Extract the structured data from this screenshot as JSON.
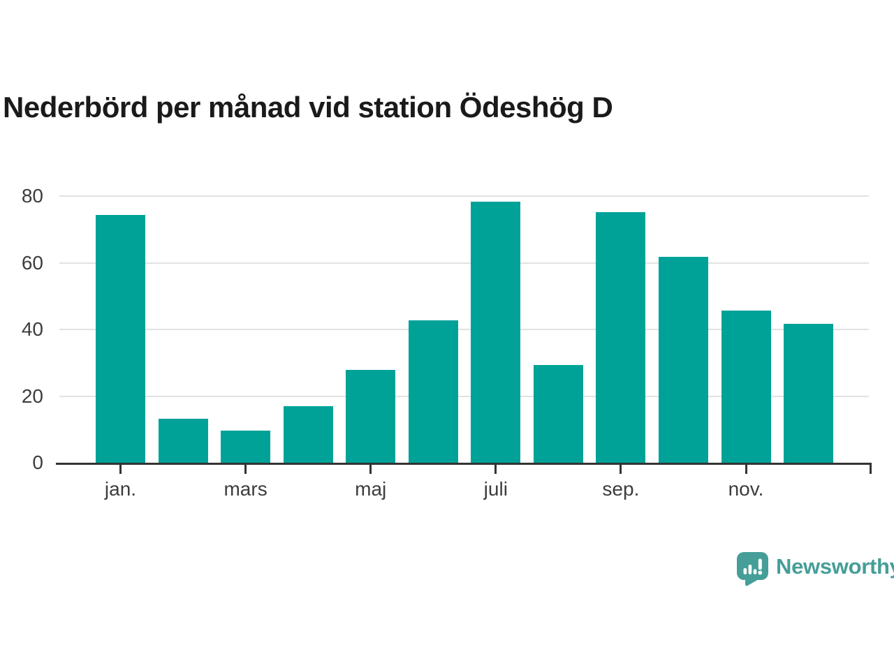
{
  "chart_data": {
    "type": "bar",
    "title": "Nederbörd per månad vid station Ödeshög D",
    "n_bars": 12,
    "values": [
      74.3,
      13.3,
      9.7,
      17.0,
      27.9,
      42.8,
      78.4,
      29.4,
      75.1,
      61.7,
      45.7,
      41.7
    ],
    "x_tick_labels": [
      "jan.",
      "mars",
      "maj",
      "juli",
      "sep.",
      "nov."
    ],
    "x_tick_bar_indices": [
      0,
      2,
      4,
      6,
      8,
      10
    ],
    "y_ticks": [
      0,
      20,
      40,
      60,
      80
    ],
    "ylim": [
      0,
      80
    ],
    "grid": "horizontal",
    "legend": "none",
    "colors": {
      "bar": "#00a298",
      "gridline": "#e2e2e2",
      "axis": "#333333",
      "tick_label": "#3d3d3d",
      "title": "#1a1a1a"
    }
  },
  "branding": {
    "logo_text": "Newsworthy",
    "logo_color": "#459e98"
  }
}
